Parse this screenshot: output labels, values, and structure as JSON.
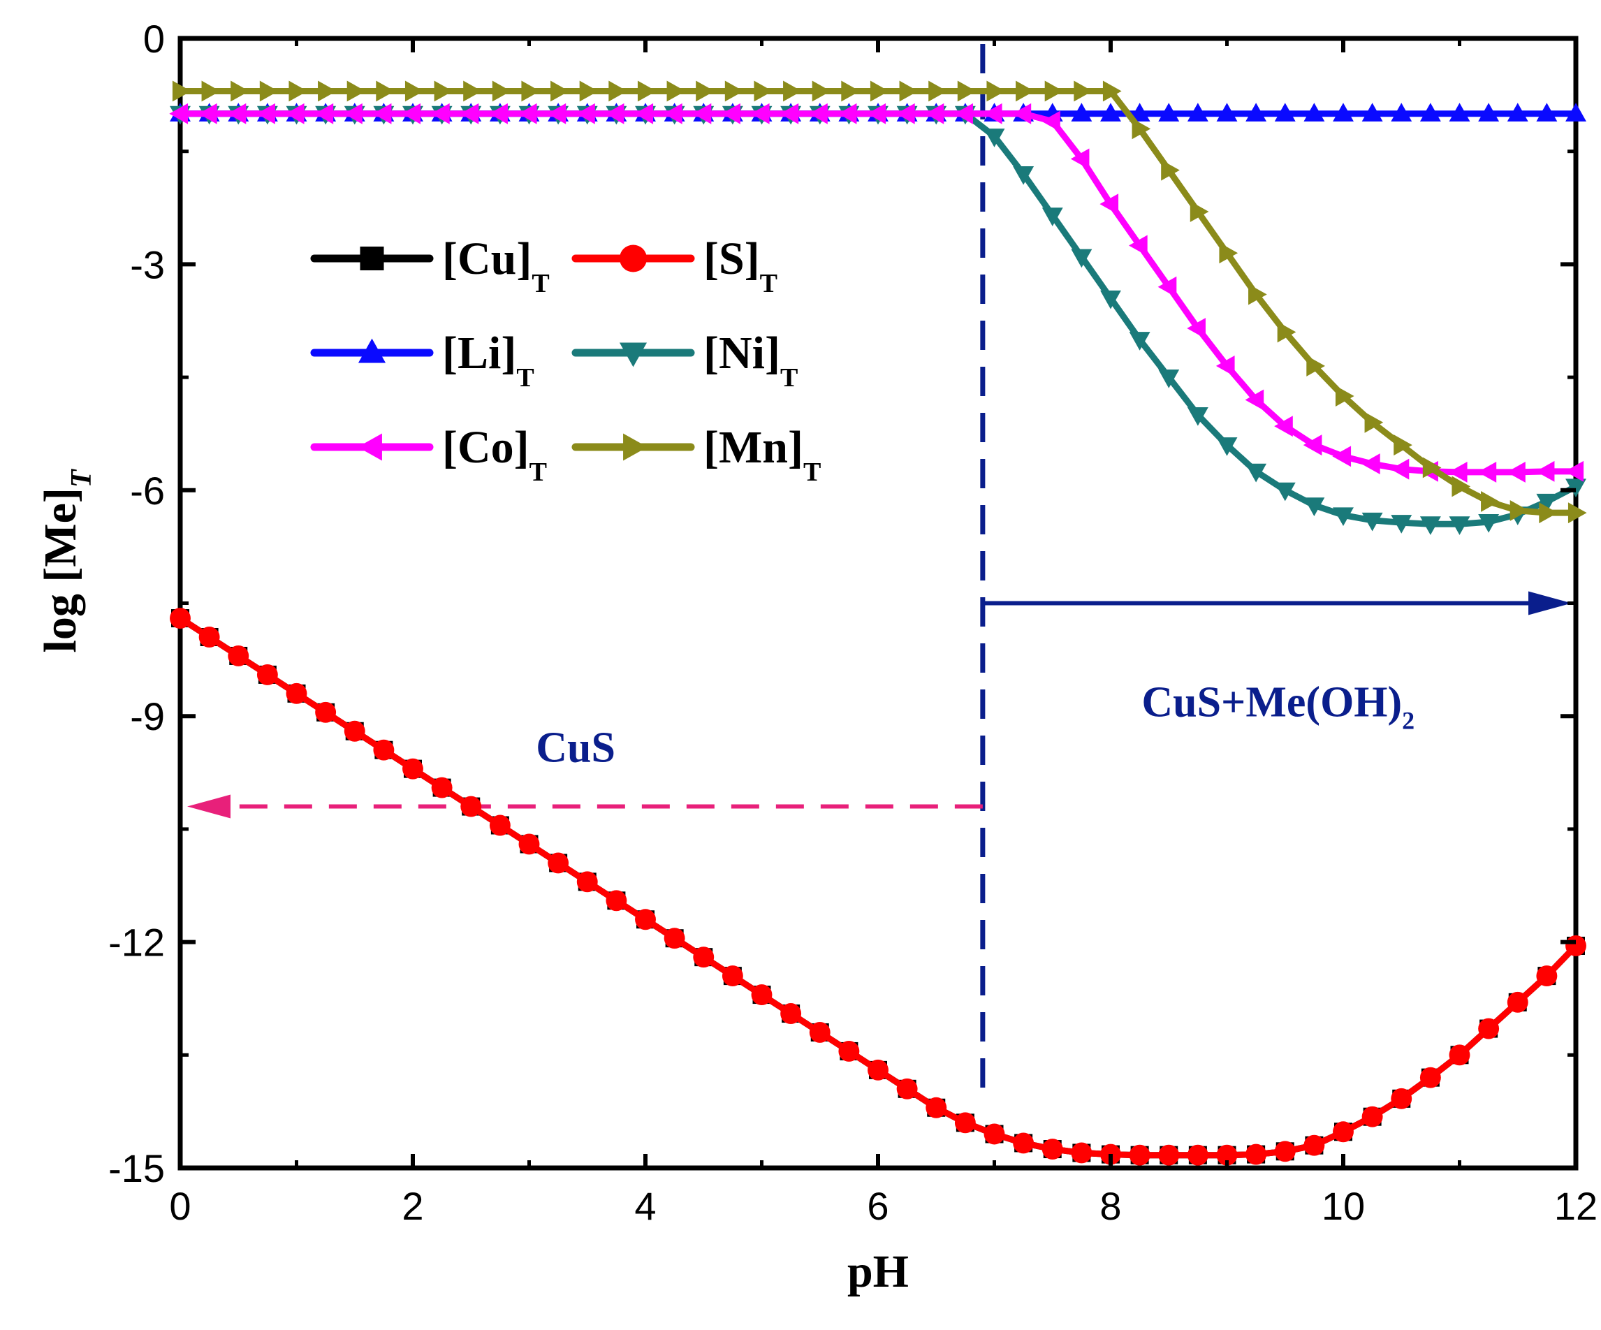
{
  "chart_data": {
    "type": "line",
    "title": "",
    "xlabel": "pH",
    "ylabel": "log [Me]",
    "ylabel_subscript": "T",
    "xlim": [
      0,
      12
    ],
    "ylim": [
      -15,
      0
    ],
    "xticks": [
      0,
      2,
      4,
      6,
      8,
      10,
      12
    ],
    "xtick_labels": [
      "0",
      "2",
      "4",
      "6",
      "8",
      "10",
      "12"
    ],
    "yticks": [
      0,
      -3,
      -6,
      -9,
      -12,
      -15
    ],
    "ytick_labels": [
      "0",
      "-3",
      "-6",
      "-9",
      "-12",
      "-15"
    ],
    "grid": false,
    "legend_position": "upper-left",
    "x": [
      0,
      0.25,
      0.5,
      0.75,
      1,
      1.25,
      1.5,
      1.75,
      2,
      2.25,
      2.5,
      2.75,
      3,
      3.25,
      3.5,
      3.75,
      4,
      4.25,
      4.5,
      4.75,
      5,
      5.25,
      5.5,
      5.75,
      6,
      6.25,
      6.5,
      6.75,
      7,
      7.25,
      7.5,
      7.75,
      8,
      8.25,
      8.5,
      8.75,
      9,
      9.25,
      9.5,
      9.75,
      10,
      10.25,
      10.5,
      10.75,
      11,
      11.25,
      11.5,
      11.75,
      12
    ],
    "series": [
      {
        "name": "[Cu]",
        "subscript": "T",
        "color": "#000000",
        "marker": "square",
        "values": [
          -7.7,
          -7.95,
          -8.2,
          -8.45,
          -8.7,
          -8.95,
          -9.2,
          -9.45,
          -9.7,
          -9.95,
          -10.2,
          -10.45,
          -10.7,
          -10.95,
          -11.2,
          -11.45,
          -11.7,
          -11.95,
          -12.2,
          -12.45,
          -12.7,
          -12.95,
          -13.2,
          -13.45,
          -13.7,
          -13.95,
          -14.2,
          -14.4,
          -14.55,
          -14.67,
          -14.75,
          -14.8,
          -14.82,
          -14.83,
          -14.83,
          -14.83,
          -14.83,
          -14.82,
          -14.78,
          -14.7,
          -14.52,
          -14.32,
          -14.08,
          -13.8,
          -13.5,
          -13.15,
          -12.8,
          -12.45,
          -12.05
        ]
      },
      {
        "name": "[S]",
        "subscript": "T",
        "color": "#ff0000",
        "marker": "circle",
        "values": [
          -7.7,
          -7.95,
          -8.2,
          -8.45,
          -8.7,
          -8.95,
          -9.2,
          -9.45,
          -9.7,
          -9.95,
          -10.2,
          -10.45,
          -10.7,
          -10.95,
          -11.2,
          -11.45,
          -11.7,
          -11.95,
          -12.2,
          -12.45,
          -12.7,
          -12.95,
          -13.2,
          -13.45,
          -13.7,
          -13.95,
          -14.2,
          -14.4,
          -14.55,
          -14.67,
          -14.75,
          -14.8,
          -14.82,
          -14.83,
          -14.83,
          -14.83,
          -14.83,
          -14.82,
          -14.78,
          -14.7,
          -14.52,
          -14.32,
          -14.08,
          -13.8,
          -13.5,
          -13.15,
          -12.8,
          -12.45,
          -12.05
        ]
      },
      {
        "name": "[Li]",
        "subscript": "T",
        "color": "#0a0aff",
        "marker": "triangle-up",
        "values": [
          -1,
          -1,
          -1,
          -1,
          -1,
          -1,
          -1,
          -1,
          -1,
          -1,
          -1,
          -1,
          -1,
          -1,
          -1,
          -1,
          -1,
          -1,
          -1,
          -1,
          -1,
          -1,
          -1,
          -1,
          -1,
          -1,
          -1,
          -1,
          -1,
          -1,
          -1,
          -1,
          -1,
          -1,
          -1,
          -1,
          -1,
          -1,
          -1,
          -1,
          -1,
          -1,
          -1,
          -1,
          -1,
          -1,
          -1,
          -1,
          -1
        ]
      },
      {
        "name": "[Ni]",
        "subscript": "T",
        "color": "#1a7a7a",
        "marker": "triangle-down",
        "values": [
          -1,
          -1,
          -1,
          -1,
          -1,
          -1,
          -1,
          -1,
          -1,
          -1,
          -1,
          -1,
          -1,
          -1,
          -1,
          -1,
          -1,
          -1,
          -1,
          -1,
          -1,
          -1,
          -1,
          -1,
          -1,
          -1,
          -1,
          -1,
          -1.3,
          -1.8,
          -2.35,
          -2.9,
          -3.45,
          -4.0,
          -4.5,
          -5.0,
          -5.4,
          -5.75,
          -6.0,
          -6.2,
          -6.33,
          -6.4,
          -6.43,
          -6.45,
          -6.45,
          -6.42,
          -6.32,
          -6.15,
          -5.95
        ]
      },
      {
        "name": "[Co]",
        "subscript": "T",
        "color": "#ff00ff",
        "marker": "triangle-left",
        "values": [
          -1,
          -1,
          -1,
          -1,
          -1,
          -1,
          -1,
          -1,
          -1,
          -1,
          -1,
          -1,
          -1,
          -1,
          -1,
          -1,
          -1,
          -1,
          -1,
          -1,
          -1,
          -1,
          -1,
          -1,
          -1,
          -1,
          -1,
          -1,
          -1,
          -1,
          -1.1,
          -1.6,
          -2.2,
          -2.75,
          -3.3,
          -3.85,
          -4.35,
          -4.8,
          -5.15,
          -5.4,
          -5.55,
          -5.65,
          -5.72,
          -5.75,
          -5.76,
          -5.76,
          -5.76,
          -5.75,
          -5.75
        ]
      },
      {
        "name": "[Mn]",
        "subscript": "T",
        "color": "#8b8b1a",
        "marker": "triangle-right",
        "values": [
          -0.7,
          -0.7,
          -0.7,
          -0.7,
          -0.7,
          -0.7,
          -0.7,
          -0.7,
          -0.7,
          -0.7,
          -0.7,
          -0.7,
          -0.7,
          -0.7,
          -0.7,
          -0.7,
          -0.7,
          -0.7,
          -0.7,
          -0.7,
          -0.7,
          -0.7,
          -0.7,
          -0.7,
          -0.7,
          -0.7,
          -0.7,
          -0.7,
          -0.7,
          -0.7,
          -0.7,
          -0.7,
          -0.7,
          -1.2,
          -1.75,
          -2.3,
          -2.85,
          -3.4,
          -3.9,
          -4.35,
          -4.75,
          -5.1,
          -5.4,
          -5.7,
          -5.95,
          -6.15,
          -6.27,
          -6.3,
          -6.3
        ]
      }
    ],
    "annotations": {
      "boundary_ph": 6.9,
      "cus_arrow_y": -10.2,
      "cus_arrow_x_end": 0,
      "mix_arrow_y": -7.5,
      "mix_arrow_x_end": 12,
      "cus_label": "CuS",
      "cus_label_pos": [
        3.4,
        -9.4
      ],
      "mix_label": "CuS+Me(OH)",
      "mix_label_subscript": "2",
      "mix_label_pos": [
        9.5,
        -8.8
      ],
      "boundary_color": "#0a1e8c",
      "cus_arrow_color": "#e8207a",
      "mix_arrow_color": "#0a1e8c"
    }
  }
}
